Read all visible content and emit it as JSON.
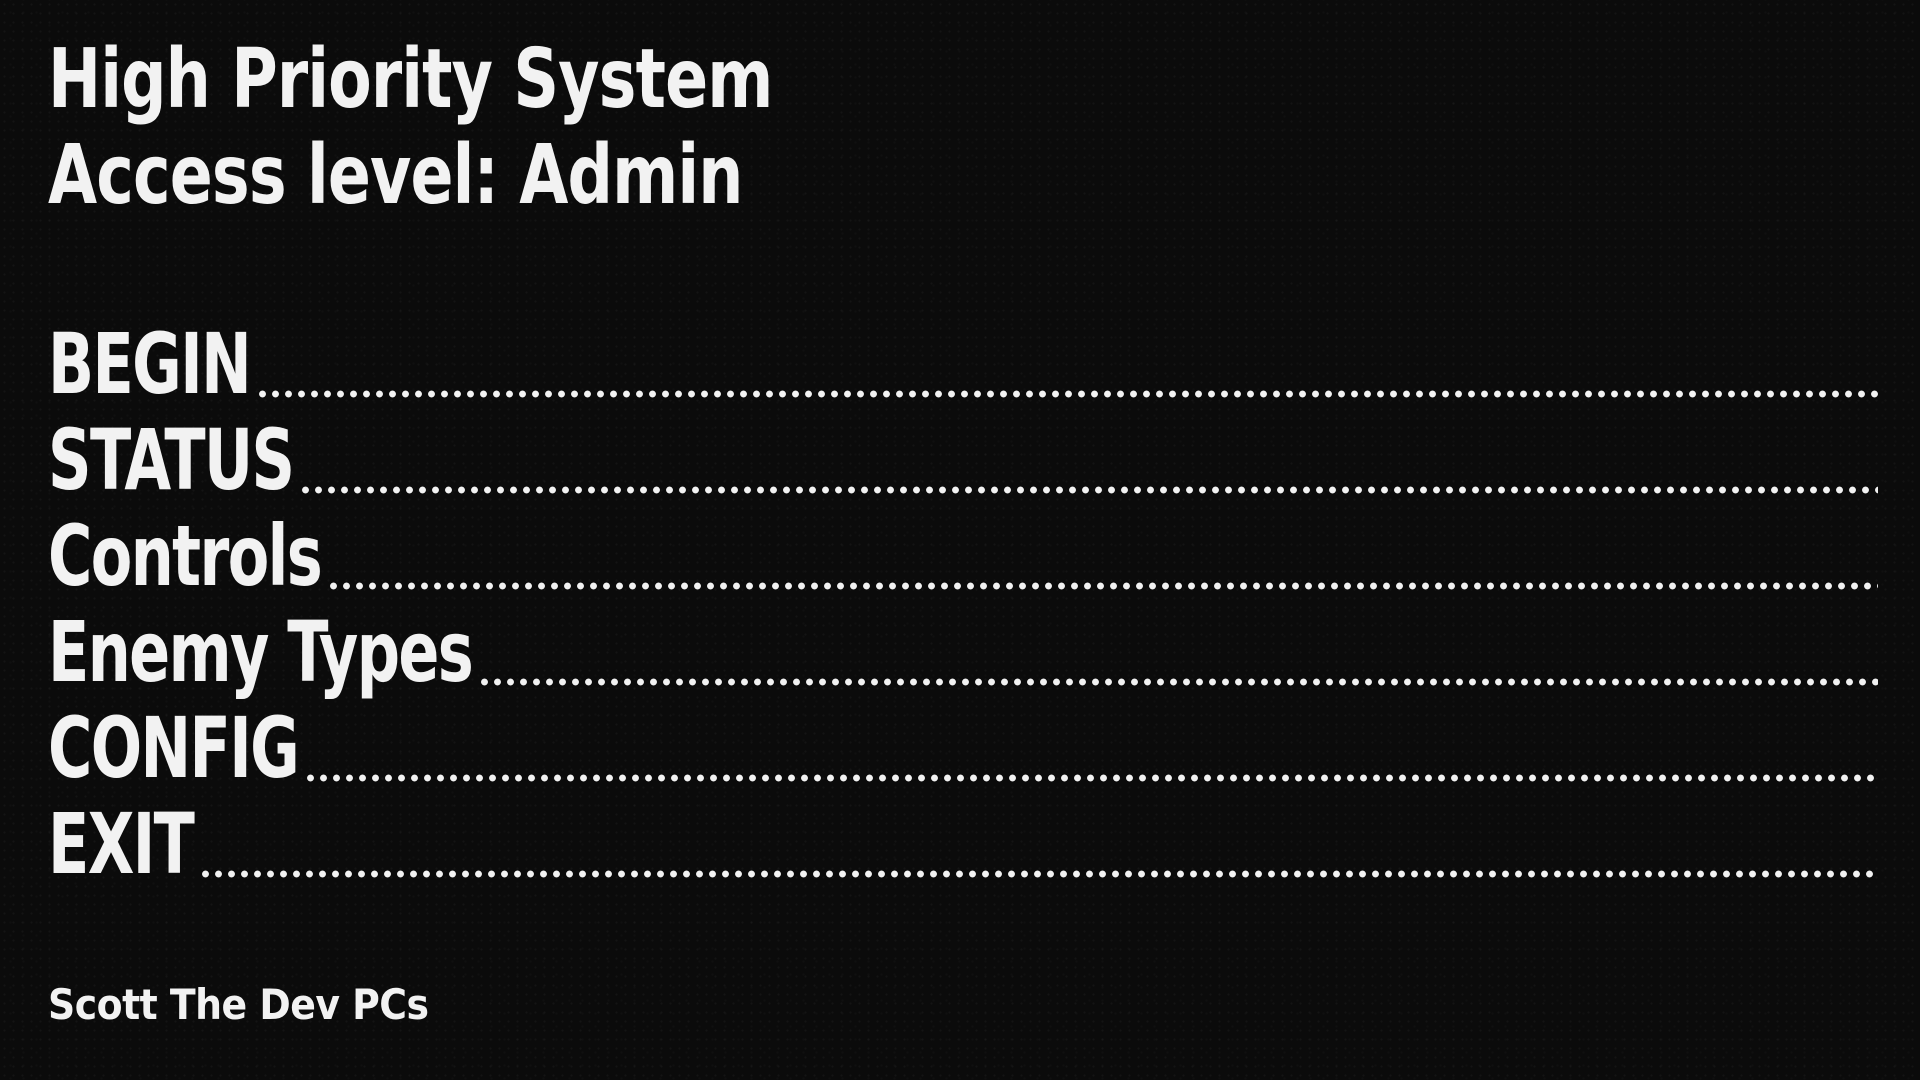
{
  "header": {
    "line1": "High Priority System",
    "line2": "Access level: Admin"
  },
  "menu": {
    "items": [
      {
        "label": "BEGIN"
      },
      {
        "label": "STATUS"
      },
      {
        "label": "Controls"
      },
      {
        "label": "Enemy Types"
      },
      {
        "label": "CONFIG"
      },
      {
        "label": "EXIT"
      }
    ]
  },
  "footer": {
    "credit": "Scott The Dev PCs"
  },
  "colors": {
    "background": "#0c0c0c",
    "text": "#f2f2f2"
  }
}
